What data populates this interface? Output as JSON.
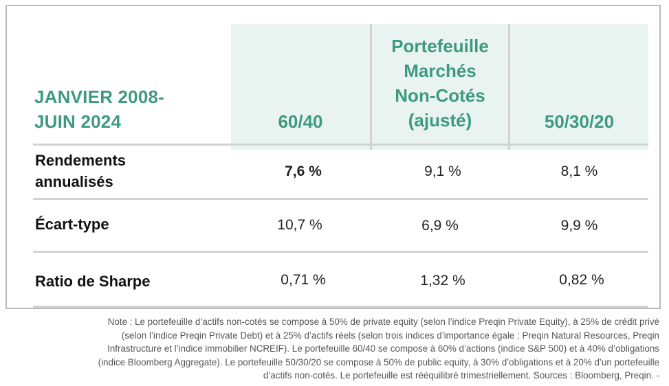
{
  "table": {
    "period_header": [
      "JANVIER 2008-",
      "JUIN 2024"
    ],
    "columns": [
      {
        "label": [
          "60/40"
        ]
      },
      {
        "label": [
          "Portefeuille",
          "Marchés",
          "Non-Cotés",
          "(ajusté)"
        ]
      },
      {
        "label": [
          "50/30/20"
        ]
      }
    ],
    "rows": [
      {
        "label": [
          "Rendements",
          "annualisés"
        ],
        "values": [
          "7,6 %",
          "9,1 %",
          "8,1 %"
        ]
      },
      {
        "label": [
          "Écart-type"
        ],
        "values": [
          "10,7 %",
          "6,9 %",
          "9,9 %"
        ]
      },
      {
        "label": [
          "Ratio de Sharpe"
        ],
        "values": [
          "0,71 %",
          "1,32 %",
          "0,82 %"
        ]
      }
    ],
    "colors": {
      "header_text": "#3d9a80",
      "header_bg": "#e9f4f0",
      "rule": "#cfd4d2"
    }
  },
  "note": [
    "Note : Le portefeuille d’actifs non-cotés se compose à 50% de private equity (selon l’indice Preqin Private Equity), à 25% de crédit privé",
    "(selon l’indice Preqin Private Debt) et à 25% d’actifs réels (selon trois indices d’importance égale : Preqin Natural Resources, Preqin",
    "Infrastructure et l’indice immobilier NCREIF). Le portefeuille 60/40 se compose à 60% d’actions (indice S&P 500) et à 40% d’obligations",
    "(indice Bloomberg Aggregate). Le portefeuille 50/30/20 se compose à 50% de public equity, à 30% d’obligations et à 20% d’un portefeuille",
    "d’actifs non-cotés. Le portefeuille est rééquilibré trimestriellement. Sources : Bloomberg, Preqin.  -"
  ]
}
